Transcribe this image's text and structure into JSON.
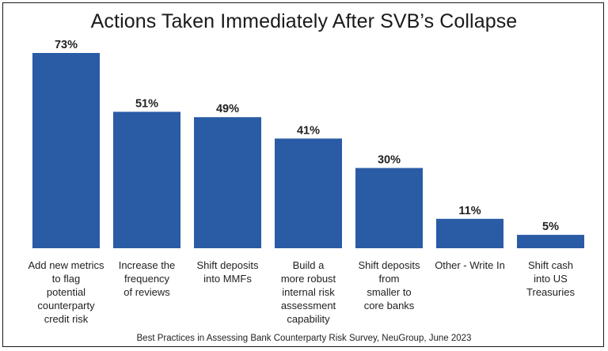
{
  "chart_data": {
    "type": "bar",
    "title": "Actions Taken Immediately After SVB’s Collapse",
    "source": "Best Practices in Assessing Bank Counterparty Risk Survey, NeuGroup, June 2023",
    "categories": [
      [
        "Add new metrics",
        "to flag",
        "potential",
        "counterparty",
        "credit risk"
      ],
      [
        "Increase the",
        "frequency",
        "of reviews"
      ],
      [
        "Shift deposits",
        "into MMFs"
      ],
      [
        "Build a",
        "more robust",
        "internal risk",
        "assessment",
        "capability"
      ],
      [
        "Shift deposits",
        "from",
        "smaller to",
        "core banks"
      ],
      [
        "Other - Write In"
      ],
      [
        "Shift cash",
        "into US",
        "Treasuries"
      ]
    ],
    "values": [
      73,
      51,
      49,
      41,
      30,
      11,
      5
    ],
    "value_labels": [
      "73%",
      "51%",
      "49%",
      "41%",
      "30%",
      "11%",
      "5%"
    ],
    "ylim": [
      0,
      73
    ],
    "grid": false,
    "legend": false,
    "bar_color": "#2a5ba5"
  }
}
